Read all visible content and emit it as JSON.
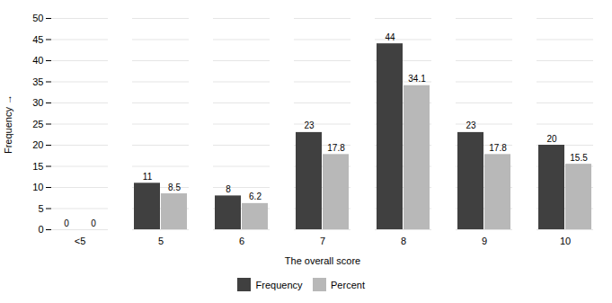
{
  "chart_data": {
    "type": "bar",
    "categories": [
      "<5",
      "5",
      "6",
      "7",
      "8",
      "9",
      "10"
    ],
    "series": [
      {
        "name": "Frequency",
        "color": "#404040",
        "values": [
          0,
          11,
          8,
          23,
          44,
          23,
          20
        ]
      },
      {
        "name": "Percent",
        "color": "#b8b8b8",
        "values": [
          0.0,
          8.5,
          6.2,
          17.8,
          34.1,
          17.8,
          15.5
        ]
      }
    ],
    "xlabel": "The overall score",
    "ylabel": "Frequency",
    "ylim": [
      0,
      50
    ],
    "yticks": [
      0,
      5,
      10,
      15,
      20,
      25,
      30,
      35,
      40,
      45,
      50
    ],
    "grid": true,
    "data_labels": true,
    "legend": "bottom"
  }
}
